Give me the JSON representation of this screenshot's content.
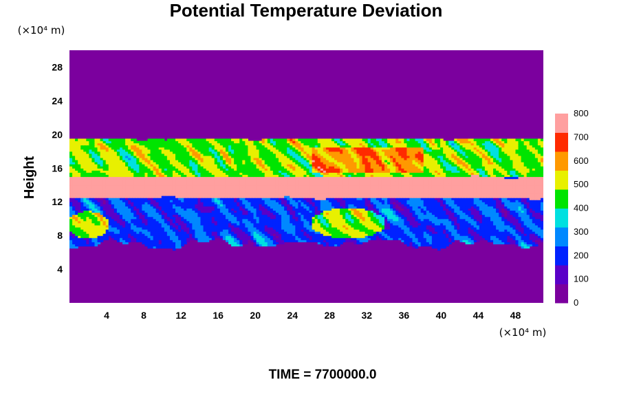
{
  "chart_data": {
    "type": "heatmap",
    "title": "Potential Temperature Deviation",
    "ylabel": "Height",
    "x_unit_label": "(×10⁴ m)",
    "y_unit_label": "(×10⁴ m)",
    "time_label": "TIME = 7700000.0",
    "xlim": [
      0,
      51
    ],
    "ylim": [
      0,
      30
    ],
    "x_ticks": [
      4,
      8,
      12,
      16,
      20,
      24,
      28,
      32,
      36,
      40,
      44,
      48
    ],
    "y_ticks": [
      4,
      8,
      12,
      16,
      20,
      24,
      28
    ],
    "colorbar": {
      "min": 0,
      "max": 800,
      "ticks": [
        0,
        100,
        200,
        300,
        400,
        500,
        600,
        700,
        800
      ],
      "colors": [
        "#7b009e",
        "#5a00c8",
        "#0022ff",
        "#0088ff",
        "#00e0e0",
        "#00e400",
        "#e8f000",
        "#ff9900",
        "#ff2a00",
        "#ff9f9f"
      ]
    },
    "field_description": {
      "background_value": 0,
      "turbulent_layer_y": [
        7,
        19.5
      ],
      "max_band_y": [
        12.5,
        15
      ]
    }
  }
}
